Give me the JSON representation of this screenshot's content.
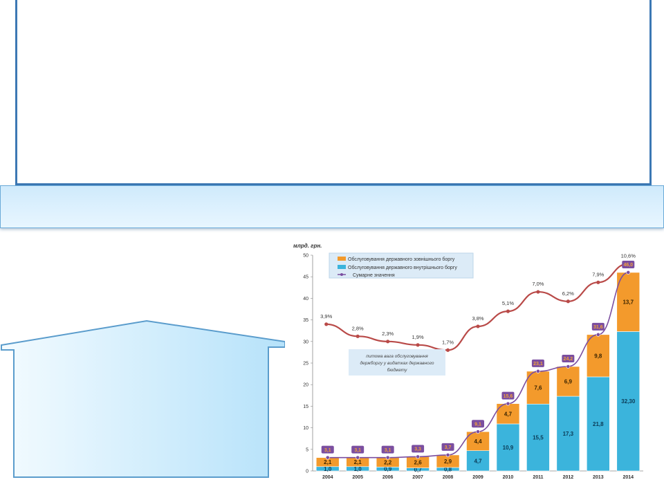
{
  "chart_data": {
    "type": "bar",
    "stacked": true,
    "ylabel": "млрд. грн.",
    "ylim": [
      0,
      50
    ],
    "yticks": [
      0,
      5,
      10,
      15,
      20,
      25,
      30,
      35,
      40,
      45,
      50
    ],
    "categories": [
      "2004",
      "2005",
      "2006",
      "2007",
      "2008",
      "2009",
      "2010",
      "2011",
      "2012",
      "2013",
      "2014"
    ],
    "series": [
      {
        "name": "Обслуговування державного внутрішнього боргу",
        "color": "#3bb4dc",
        "values": [
          1.0,
          1.0,
          0.9,
          0.7,
          0.8,
          4.7,
          10.9,
          15.5,
          17.3,
          21.8,
          32.3
        ],
        "labels": [
          "1,0",
          "1,0",
          "0,9",
          "0,7",
          "0,8",
          "4,7",
          "10,9",
          "15,5",
          "17,3",
          "21,8",
          "32,30"
        ]
      },
      {
        "name": "Обслуговування державного зовнішнього боргу",
        "color": "#f39a2c",
        "values": [
          2.1,
          2.1,
          2.2,
          2.6,
          2.9,
          4.4,
          4.7,
          7.6,
          6.9,
          9.8,
          13.7
        ],
        "labels": [
          "2,1",
          "2,1",
          "2,2",
          "2,6",
          "2,9",
          "4,4",
          "4,7",
          "7,6",
          "6,9",
          "9,8",
          "13,7"
        ]
      }
    ],
    "total_line": {
      "name": "Сумарне значення",
      "color": "#7b4ea0",
      "values": [
        3.1,
        3.1,
        3.1,
        3.3,
        3.7,
        9.1,
        15.6,
        23.1,
        24.2,
        31.6,
        46.0
      ],
      "labels": [
        "3,1",
        "3,1",
        "3,1",
        "3,3",
        "3,7",
        "9,1",
        "15,6",
        "23,1",
        "24,2",
        "31,6",
        "46,0"
      ]
    },
    "share_line": {
      "color": "#b94a48",
      "values": [
        3.9,
        2.8,
        2.3,
        1.9,
        1.7,
        3.8,
        5.1,
        7.0,
        6.2,
        7.9,
        10.6
      ],
      "labels": [
        "3,9%",
        "2,8%",
        "2,3%",
        "1,9%",
        "1,7%",
        "3,8%",
        "5,1%",
        "7,0%",
        "6,2%",
        "7,9%",
        "10,6%"
      ],
      "plot_y": [
        34,
        31.2,
        30,
        29.2,
        28,
        33.5,
        37,
        41.5,
        39.3,
        43.7,
        48
      ]
    },
    "annotation": "питома вага обслуговування держборгу у видатках державного бюджету",
    "grid": false,
    "legend": "top-left"
  }
}
